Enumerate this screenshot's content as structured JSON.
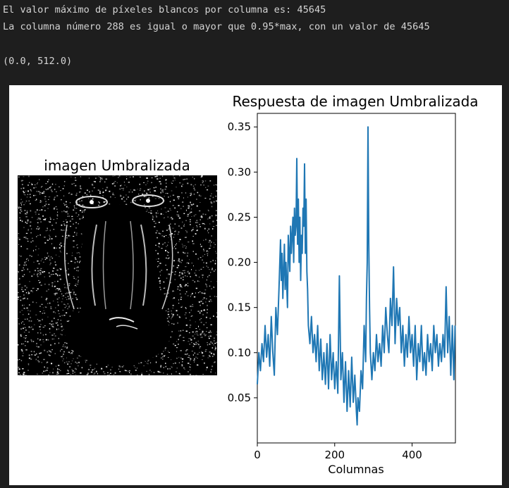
{
  "console": {
    "line1": "El valor máximo de píxeles blancos por columna es: 45645",
    "line2": "La columna número 288 es igual o mayor que 0.95*max, con un valor de 45645",
    "line3": "(0.0, 512.0)"
  },
  "left_panel": {
    "title": "imagen Umbralizada"
  },
  "chart_data": {
    "type": "line",
    "title": "Respuesta de imagen Umbralizada",
    "xlabel": "Columnas",
    "ylabel": "",
    "xlim": [
      0,
      512
    ],
    "ylim": [
      0.0,
      0.365
    ],
    "xticks": [
      0,
      200,
      400
    ],
    "yticks": [
      0.05,
      0.1,
      0.15,
      0.2,
      0.25,
      0.3,
      0.35
    ],
    "ytick_labels": [
      "0.05",
      "0.10",
      "0.15",
      "0.20",
      "0.25",
      "0.30",
      "0.35"
    ],
    "line_color": "#1f77b4",
    "series": [
      {
        "x": [
          0,
          4,
          8,
          12,
          16,
          20,
          24,
          28,
          32,
          36,
          40,
          44,
          48,
          52,
          56,
          60,
          62,
          64,
          66,
          70,
          72,
          74,
          78,
          80,
          84,
          86,
          88,
          92,
          94,
          96,
          98,
          100,
          102,
          104,
          106,
          108,
          110,
          112,
          114,
          116,
          118,
          120,
          122,
          124,
          126,
          128,
          130,
          132,
          136,
          140,
          144,
          148,
          152,
          156,
          160,
          164,
          168,
          172,
          176,
          180,
          184,
          188,
          192,
          196,
          200,
          204,
          208,
          212,
          216,
          220,
          224,
          228,
          232,
          236,
          240,
          244,
          248,
          252,
          256,
          258,
          260,
          264,
          268,
          272,
          276,
          280,
          282,
          284,
          286,
          288,
          290,
          292,
          296,
          300,
          304,
          308,
          312,
          316,
          320,
          324,
          328,
          332,
          336,
          340,
          344,
          348,
          352,
          356,
          360,
          364,
          368,
          372,
          376,
          380,
          384,
          388,
          392,
          396,
          400,
          404,
          408,
          412,
          416,
          420,
          424,
          428,
          432,
          436,
          440,
          444,
          448,
          452,
          456,
          460,
          464,
          468,
          472,
          476,
          480,
          484,
          488,
          492,
          496,
          500,
          504,
          508,
          511
        ],
        "y": [
          0.065,
          0.1,
          0.08,
          0.11,
          0.09,
          0.13,
          0.095,
          0.12,
          0.085,
          0.14,
          0.1,
          0.075,
          0.15,
          0.12,
          0.17,
          0.225,
          0.18,
          0.21,
          0.16,
          0.22,
          0.17,
          0.2,
          0.15,
          0.23,
          0.19,
          0.24,
          0.21,
          0.25,
          0.2,
          0.26,
          0.23,
          0.24,
          0.315,
          0.22,
          0.27,
          0.2,
          0.25,
          0.18,
          0.23,
          0.21,
          0.26,
          0.24,
          0.309,
          0.21,
          0.27,
          0.19,
          0.17,
          0.13,
          0.11,
          0.14,
          0.1,
          0.12,
          0.09,
          0.13,
          0.08,
          0.115,
          0.07,
          0.1,
          0.065,
          0.11,
          0.06,
          0.12,
          0.07,
          0.1,
          0.06,
          0.09,
          0.055,
          0.185,
          0.07,
          0.1,
          0.045,
          0.09,
          0.035,
          0.08,
          0.04,
          0.095,
          0.045,
          0.075,
          0.035,
          0.02,
          0.05,
          0.035,
          0.08,
          0.06,
          0.13,
          0.09,
          0.16,
          0.2,
          0.35,
          0.22,
          0.15,
          0.1,
          0.07,
          0.1,
          0.08,
          0.12,
          0.09,
          0.11,
          0.085,
          0.13,
          0.1,
          0.15,
          0.12,
          0.1,
          0.16,
          0.13,
          0.195,
          0.11,
          0.16,
          0.13,
          0.15,
          0.1,
          0.13,
          0.085,
          0.12,
          0.095,
          0.14,
          0.1,
          0.12,
          0.085,
          0.13,
          0.07,
          0.11,
          0.09,
          0.13,
          0.08,
          0.1,
          0.075,
          0.12,
          0.09,
          0.11,
          0.08,
          0.13,
          0.1,
          0.12,
          0.085,
          0.11,
          0.09,
          0.12,
          0.095,
          0.173,
          0.1,
          0.14,
          0.075,
          0.13,
          0.07,
          0.13
        ]
      }
    ]
  }
}
